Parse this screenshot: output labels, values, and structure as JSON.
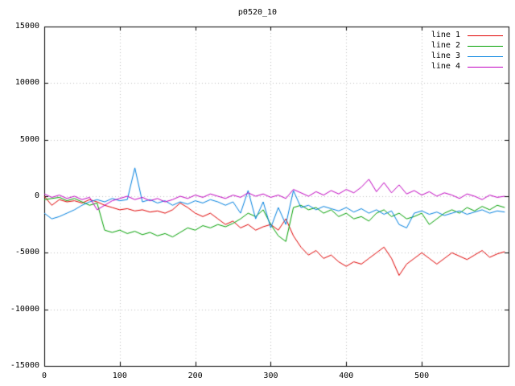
{
  "chart_data": {
    "type": "line",
    "title": "p0520_10",
    "xlabel": "",
    "ylabel": "",
    "xlim": [
      0,
      615
    ],
    "ylim": [
      -15000,
      15000
    ],
    "x_ticks": [
      0,
      100,
      200,
      300,
      400,
      500
    ],
    "y_ticks": [
      -15000,
      -10000,
      -5000,
      0,
      5000,
      10000,
      15000
    ],
    "grid": true,
    "legend_position": "top-right",
    "colors": {
      "background": "#ffffff",
      "border": "#000000",
      "grid": "#c0c0c0"
    },
    "x": [
      0,
      10,
      20,
      30,
      40,
      50,
      60,
      70,
      80,
      90,
      100,
      110,
      120,
      130,
      140,
      150,
      160,
      170,
      180,
      190,
      200,
      210,
      220,
      230,
      240,
      250,
      260,
      270,
      280,
      290,
      300,
      310,
      320,
      330,
      340,
      350,
      360,
      370,
      380,
      390,
      400,
      410,
      420,
      430,
      440,
      450,
      460,
      470,
      480,
      490,
      500,
      510,
      520,
      530,
      540,
      550,
      560,
      570,
      580,
      590,
      600,
      610
    ],
    "series": [
      {
        "name": "line 1",
        "color": "#e00000",
        "values": [
          0,
          -800,
          -300,
          -500,
          -400,
          -600,
          -300,
          -500,
          -800,
          -1000,
          -1200,
          -1100,
          -1300,
          -1200,
          -1400,
          -1300,
          -1500,
          -1200,
          -600,
          -1000,
          -1500,
          -1800,
          -1500,
          -2000,
          -2500,
          -2200,
          -2800,
          -2500,
          -3000,
          -2700,
          -2500,
          -3000,
          -2000,
          -3500,
          -4500,
          -5200,
          -4800,
          -5500,
          -5200,
          -5800,
          -6200,
          -5800,
          -6000,
          -5500,
          -5000,
          -4500,
          -5500,
          -7000,
          -6000,
          -5500,
          -5000,
          -5500,
          -6000,
          -5500,
          -5000,
          -5300,
          -5600,
          -5200,
          -4800,
          -5400,
          -5100,
          -4900
        ]
      },
      {
        "name": "line 2",
        "color": "#00a000",
        "values": [
          -300,
          -200,
          -100,
          -400,
          -200,
          -500,
          -800,
          -600,
          -3000,
          -3200,
          -3000,
          -3300,
          -3100,
          -3400,
          -3200,
          -3500,
          -3300,
          -3600,
          -3200,
          -2800,
          -3000,
          -2600,
          -2800,
          -2500,
          -2700,
          -2400,
          -2000,
          -1500,
          -1800,
          -1200,
          -2500,
          -3500,
          -4000,
          -1000,
          -800,
          -1200,
          -1000,
          -1500,
          -1200,
          -1800,
          -1500,
          -2000,
          -1800,
          -2200,
          -1500,
          -1200,
          -1800,
          -1500,
          -2000,
          -1800,
          -1500,
          -2500,
          -2000,
          -1500,
          -1200,
          -1500,
          -1000,
          -1300,
          -900,
          -1200,
          -800,
          -1000
        ]
      },
      {
        "name": "line 3",
        "color": "#0080e0",
        "values": [
          -1500,
          -2000,
          -1800,
          -1500,
          -1200,
          -800,
          -500,
          -300,
          -500,
          -200,
          -400,
          -300,
          2500,
          -500,
          -300,
          -600,
          -400,
          -800,
          -500,
          -700,
          -400,
          -600,
          -300,
          -500,
          -800,
          -500,
          -1500,
          500,
          -2000,
          -500,
          -2800,
          -1000,
          -2500,
          500,
          -1000,
          -800,
          -1200,
          -900,
          -1100,
          -1300,
          -1000,
          -1400,
          -1100,
          -1500,
          -1200,
          -1600,
          -1300,
          -2500,
          -2800,
          -1500,
          -1300,
          -1600,
          -1400,
          -1700,
          -1500,
          -1300,
          -1600,
          -1400,
          -1200,
          -1500,
          -1300,
          -1400
        ]
      },
      {
        "name": "line 4",
        "color": "#c000c0",
        "values": [
          200,
          -100,
          100,
          -200,
          0,
          -300,
          -100,
          -1200,
          -800,
          -400,
          -200,
          0,
          -300,
          -100,
          -400,
          -200,
          -500,
          -300,
          0,
          -200,
          100,
          -100,
          200,
          0,
          -200,
          100,
          -100,
          300,
          0,
          200,
          -100,
          100,
          -200,
          600,
          300,
          0,
          400,
          100,
          500,
          200,
          600,
          300,
          800,
          1500,
          400,
          1200,
          300,
          1000,
          200,
          500,
          100,
          400,
          0,
          300,
          100,
          -200,
          200,
          0,
          -300,
          100,
          -100,
          0
        ]
      }
    ]
  }
}
